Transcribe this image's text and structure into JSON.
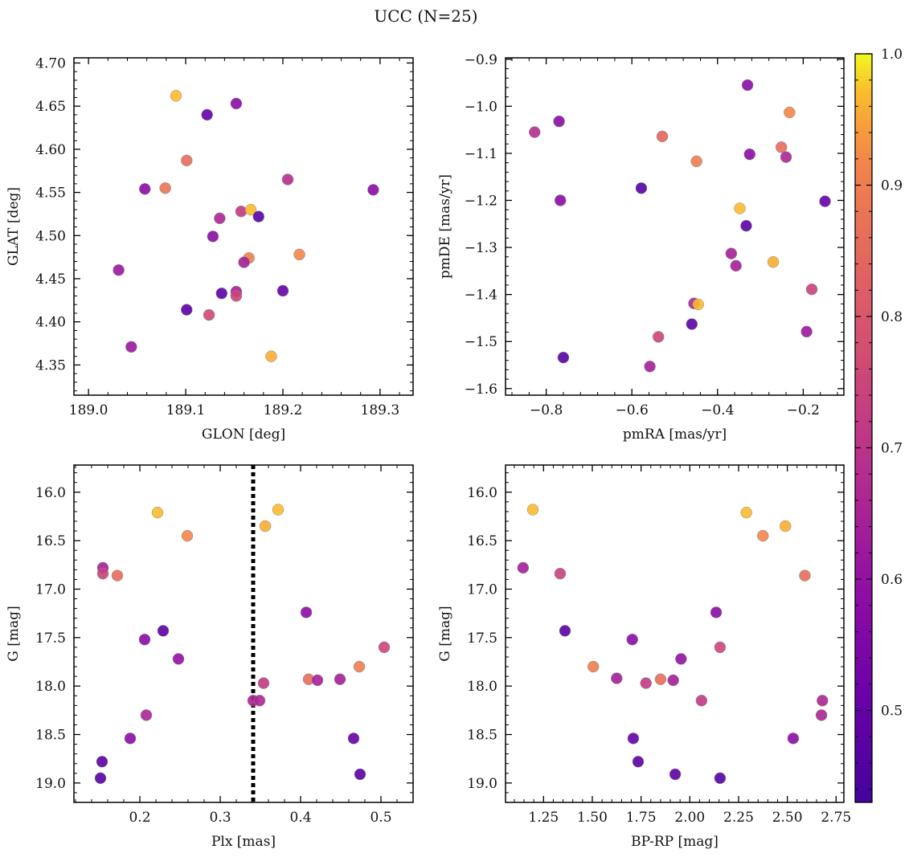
{
  "figure": {
    "title": "UCC (N=25)"
  },
  "colormap": {
    "name": "plasma",
    "range": [
      0.43,
      1.0
    ],
    "ticks": [
      0.5,
      0.6,
      0.7,
      0.8,
      0.9,
      1.0
    ],
    "tick_labels": [
      "0.5",
      "0.6",
      "0.7",
      "0.8",
      "0.9",
      "1.0"
    ]
  },
  "chart_data": [
    {
      "type": "scatter",
      "id": "glon-glat",
      "xlabel": "GLON [deg]",
      "ylabel": "GLAT [deg]",
      "xlim": [
        188.985,
        189.334
      ],
      "ylim": [
        4.315,
        4.706
      ],
      "xticks": [
        189.0,
        189.1,
        189.2,
        189.3
      ],
      "xtick_labels": [
        "189.0",
        "189.1",
        "189.2",
        "189.3"
      ],
      "yticks": [
        4.35,
        4.4,
        4.45,
        4.5,
        4.55,
        4.6,
        4.65,
        4.7
      ],
      "ytick_labels": [
        "4.35",
        "4.40",
        "4.45",
        "4.50",
        "4.55",
        "4.60",
        "4.65",
        "4.70"
      ],
      "points": [
        {
          "x": 189.09,
          "y": 4.662,
          "c": 0.97
        },
        {
          "x": 189.122,
          "y": 4.64,
          "c": 0.5
        },
        {
          "x": 189.152,
          "y": 4.653,
          "c": 0.58
        },
        {
          "x": 189.101,
          "y": 4.587,
          "c": 0.86
        },
        {
          "x": 189.058,
          "y": 4.554,
          "c": 0.58
        },
        {
          "x": 189.079,
          "y": 4.555,
          "c": 0.88
        },
        {
          "x": 189.205,
          "y": 4.565,
          "c": 0.68
        },
        {
          "x": 189.293,
          "y": 4.553,
          "c": 0.58
        },
        {
          "x": 189.157,
          "y": 4.528,
          "c": 0.72
        },
        {
          "x": 189.167,
          "y": 4.53,
          "c": 0.97
        },
        {
          "x": 189.175,
          "y": 4.522,
          "c": 0.47
        },
        {
          "x": 189.135,
          "y": 4.52,
          "c": 0.66
        },
        {
          "x": 189.128,
          "y": 4.499,
          "c": 0.58
        },
        {
          "x": 189.165,
          "y": 4.474,
          "c": 0.9
        },
        {
          "x": 189.217,
          "y": 4.478,
          "c": 0.92
        },
        {
          "x": 189.16,
          "y": 4.469,
          "c": 0.64
        },
        {
          "x": 189.031,
          "y": 4.46,
          "c": 0.62
        },
        {
          "x": 189.137,
          "y": 4.433,
          "c": 0.48
        },
        {
          "x": 189.152,
          "y": 4.435,
          "c": 0.64
        },
        {
          "x": 189.152,
          "y": 4.43,
          "c": 0.75
        },
        {
          "x": 189.2,
          "y": 4.436,
          "c": 0.5
        },
        {
          "x": 189.101,
          "y": 4.414,
          "c": 0.48
        },
        {
          "x": 189.124,
          "y": 4.408,
          "c": 0.76
        },
        {
          "x": 189.044,
          "y": 4.371,
          "c": 0.62
        },
        {
          "x": 189.188,
          "y": 4.36,
          "c": 0.96
        }
      ]
    },
    {
      "type": "scatter",
      "id": "pmra-pmde",
      "xlabel": "pmRA [mas/yr]",
      "ylabel": "pmDE [mas/yr]",
      "xlim": [
        -0.895,
        -0.105
      ],
      "ylim": [
        -1.614,
        -0.897
      ],
      "xticks": [
        -0.8,
        -0.6,
        -0.4,
        -0.2
      ],
      "xtick_labels": [
        "−0.8",
        "−0.6",
        "−0.4",
        "−0.2"
      ],
      "yticks": [
        -1.6,
        -1.5,
        -1.4,
        -1.3,
        -1.2,
        -1.1,
        -1.0,
        -0.9
      ],
      "ytick_labels": [
        "−1.6",
        "−1.5",
        "−1.4",
        "−1.3",
        "−1.2",
        "−1.1",
        "−1.0",
        "−0.9"
      ],
      "points": [
        {
          "x": -0.33,
          "y": -0.955,
          "c": 0.58
        },
        {
          "x": -0.232,
          "y": -1.013,
          "c": 0.92
        },
        {
          "x": -0.77,
          "y": -1.032,
          "c": 0.58
        },
        {
          "x": -0.827,
          "y": -1.055,
          "c": 0.68
        },
        {
          "x": -0.529,
          "y": -1.064,
          "c": 0.84
        },
        {
          "x": -0.251,
          "y": -1.087,
          "c": 0.86
        },
        {
          "x": -0.325,
          "y": -1.102,
          "c": 0.58
        },
        {
          "x": -0.24,
          "y": -1.108,
          "c": 0.66
        },
        {
          "x": -0.449,
          "y": -1.117,
          "c": 0.9
        },
        {
          "x": -0.578,
          "y": -1.174,
          "c": 0.47
        },
        {
          "x": -0.767,
          "y": -1.2,
          "c": 0.58
        },
        {
          "x": -0.149,
          "y": -1.202,
          "c": 0.5
        },
        {
          "x": -0.348,
          "y": -1.217,
          "c": 0.97
        },
        {
          "x": -0.333,
          "y": -1.254,
          "c": 0.48
        },
        {
          "x": -0.368,
          "y": -1.313,
          "c": 0.64
        },
        {
          "x": -0.27,
          "y": -1.331,
          "c": 0.96
        },
        {
          "x": -0.357,
          "y": -1.339,
          "c": 0.64
        },
        {
          "x": -0.18,
          "y": -1.389,
          "c": 0.74
        },
        {
          "x": -0.455,
          "y": -1.419,
          "c": 0.66
        },
        {
          "x": -0.445,
          "y": -1.421,
          "c": 0.97
        },
        {
          "x": -0.46,
          "y": -1.463,
          "c": 0.48
        },
        {
          "x": -0.192,
          "y": -1.479,
          "c": 0.62
        },
        {
          "x": -0.538,
          "y": -1.49,
          "c": 0.75
        },
        {
          "x": -0.558,
          "y": -1.553,
          "c": 0.64
        },
        {
          "x": -0.76,
          "y": -1.534,
          "c": 0.47
        }
      ]
    },
    {
      "type": "scatter",
      "id": "plx-g",
      "xlabel": "Plx [mas]",
      "ylabel": "G [mag]",
      "xlim": [
        0.118,
        0.54
      ],
      "ylim": [
        19.2,
        15.72
      ],
      "y_inverted": true,
      "xticks": [
        0.2,
        0.3,
        0.4,
        0.5
      ],
      "xtick_labels": [
        "0.2",
        "0.3",
        "0.4",
        "0.5"
      ],
      "yticks": [
        16.0,
        16.5,
        17.0,
        17.5,
        18.0,
        18.5,
        19.0
      ],
      "ytick_labels": [
        "16.0",
        "16.5",
        "17.0",
        "17.5",
        "18.0",
        "18.5",
        "19.0"
      ],
      "vline": {
        "x": 0.341,
        "style": "dotted"
      },
      "points": [
        {
          "x": 0.222,
          "y": 16.21,
          "c": 0.97
        },
        {
          "x": 0.372,
          "y": 16.18,
          "c": 0.97
        },
        {
          "x": 0.259,
          "y": 16.45,
          "c": 0.92
        },
        {
          "x": 0.356,
          "y": 16.35,
          "c": 0.96
        },
        {
          "x": 0.154,
          "y": 16.78,
          "c": 0.64
        },
        {
          "x": 0.154,
          "y": 16.84,
          "c": 0.74
        },
        {
          "x": 0.172,
          "y": 16.86,
          "c": 0.86
        },
        {
          "x": 0.407,
          "y": 17.24,
          "c": 0.58
        },
        {
          "x": 0.229,
          "y": 17.43,
          "c": 0.48
        },
        {
          "x": 0.206,
          "y": 17.52,
          "c": 0.58
        },
        {
          "x": 0.504,
          "y": 17.6,
          "c": 0.75
        },
        {
          "x": 0.248,
          "y": 17.72,
          "c": 0.6
        },
        {
          "x": 0.473,
          "y": 17.8,
          "c": 0.9
        },
        {
          "x": 0.41,
          "y": 17.93,
          "c": 0.86
        },
        {
          "x": 0.449,
          "y": 17.93,
          "c": 0.64
        },
        {
          "x": 0.421,
          "y": 17.94,
          "c": 0.64
        },
        {
          "x": 0.354,
          "y": 17.97,
          "c": 0.72
        },
        {
          "x": 0.341,
          "y": 18.15,
          "c": 0.66
        },
        {
          "x": 0.349,
          "y": 18.15,
          "c": 0.66
        },
        {
          "x": 0.208,
          "y": 18.3,
          "c": 0.66
        },
        {
          "x": 0.188,
          "y": 18.54,
          "c": 0.58
        },
        {
          "x": 0.466,
          "y": 18.54,
          "c": 0.5
        },
        {
          "x": 0.153,
          "y": 18.78,
          "c": 0.48
        },
        {
          "x": 0.474,
          "y": 18.91,
          "c": 0.48
        },
        {
          "x": 0.151,
          "y": 18.95,
          "c": 0.47
        }
      ]
    },
    {
      "type": "scatter",
      "id": "bprp-g",
      "xlabel": "BP-RP [mag]",
      "ylabel": "G [mag]",
      "xlim": [
        1.055,
        2.79
      ],
      "ylim": [
        19.2,
        15.72
      ],
      "y_inverted": true,
      "xticks": [
        1.25,
        1.5,
        1.75,
        2.0,
        2.25,
        2.5,
        2.75
      ],
      "xtick_labels": [
        "1.25",
        "1.50",
        "1.75",
        "2.00",
        "2.25",
        "2.50",
        "2.75"
      ],
      "yticks": [
        16.0,
        16.5,
        17.0,
        17.5,
        18.0,
        18.5,
        19.0
      ],
      "ytick_labels": [
        "16.0",
        "16.5",
        "17.0",
        "17.5",
        "18.0",
        "18.5",
        "19.0"
      ],
      "points": [
        {
          "x": 1.195,
          "y": 16.18,
          "c": 0.97
        },
        {
          "x": 2.29,
          "y": 16.21,
          "c": 0.97
        },
        {
          "x": 2.49,
          "y": 16.35,
          "c": 0.96
        },
        {
          "x": 2.375,
          "y": 16.45,
          "c": 0.92
        },
        {
          "x": 1.145,
          "y": 16.78,
          "c": 0.64
        },
        {
          "x": 1.335,
          "y": 16.84,
          "c": 0.74
        },
        {
          "x": 2.59,
          "y": 16.86,
          "c": 0.86
        },
        {
          "x": 2.135,
          "y": 17.24,
          "c": 0.58
        },
        {
          "x": 1.36,
          "y": 17.43,
          "c": 0.48
        },
        {
          "x": 1.705,
          "y": 17.52,
          "c": 0.58
        },
        {
          "x": 2.155,
          "y": 17.6,
          "c": 0.75
        },
        {
          "x": 1.955,
          "y": 17.72,
          "c": 0.6
        },
        {
          "x": 1.505,
          "y": 17.8,
          "c": 0.9
        },
        {
          "x": 1.625,
          "y": 17.92,
          "c": 0.64
        },
        {
          "x": 1.85,
          "y": 17.93,
          "c": 0.86
        },
        {
          "x": 1.915,
          "y": 17.94,
          "c": 0.64
        },
        {
          "x": 1.775,
          "y": 17.97,
          "c": 0.72
        },
        {
          "x": 2.06,
          "y": 18.15,
          "c": 0.72
        },
        {
          "x": 2.68,
          "y": 18.15,
          "c": 0.66
        },
        {
          "x": 2.675,
          "y": 18.3,
          "c": 0.66
        },
        {
          "x": 1.71,
          "y": 18.54,
          "c": 0.5
        },
        {
          "x": 2.53,
          "y": 18.54,
          "c": 0.58
        },
        {
          "x": 1.735,
          "y": 18.78,
          "c": 0.48
        },
        {
          "x": 1.925,
          "y": 18.91,
          "c": 0.48
        },
        {
          "x": 2.155,
          "y": 18.95,
          "c": 0.47
        }
      ]
    }
  ]
}
